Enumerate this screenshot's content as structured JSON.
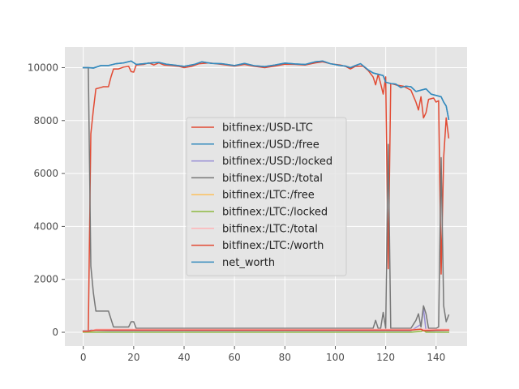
{
  "chart_data": {
    "type": "line",
    "title": "",
    "xlabel": "",
    "ylabel": "",
    "xlim": [
      -7.3,
      152.3
    ],
    "ylim": [
      -520,
      10780
    ],
    "xticks": [
      0,
      20,
      40,
      60,
      80,
      100,
      120,
      140
    ],
    "yticks": [
      0,
      2000,
      4000,
      6000,
      8000,
      10000
    ],
    "grid": true,
    "legend_position": "center",
    "series": [
      {
        "name": "bitfinex:/USD-LTC",
        "color": "#E24A33",
        "points": [
          [
            0,
            50
          ],
          [
            1,
            50
          ],
          [
            2,
            50
          ],
          [
            3,
            7500
          ],
          [
            4,
            8400
          ],
          [
            5,
            9200
          ],
          [
            7,
            9250
          ],
          [
            8,
            9280
          ],
          [
            10,
            9280
          ],
          [
            11,
            9650
          ],
          [
            12,
            9950
          ],
          [
            14,
            9950
          ],
          [
            16,
            10020
          ],
          [
            18,
            10050
          ],
          [
            19,
            9850
          ],
          [
            20,
            9830
          ],
          [
            21,
            10100
          ],
          [
            24,
            10120
          ],
          [
            26,
            10180
          ],
          [
            28,
            10100
          ],
          [
            30,
            10180
          ],
          [
            32,
            10100
          ],
          [
            35,
            10080
          ],
          [
            38,
            10050
          ],
          [
            40,
            10000
          ],
          [
            43,
            10050
          ],
          [
            46,
            10150
          ],
          [
            50,
            10180
          ],
          [
            55,
            10120
          ],
          [
            60,
            10060
          ],
          [
            64,
            10120
          ],
          [
            68,
            10050
          ],
          [
            72,
            10000
          ],
          [
            76,
            10060
          ],
          [
            80,
            10130
          ],
          [
            84,
            10120
          ],
          [
            88,
            10100
          ],
          [
            92,
            10180
          ],
          [
            95,
            10220
          ],
          [
            98,
            10150
          ],
          [
            102,
            10100
          ],
          [
            104,
            10050
          ],
          [
            106,
            9950
          ],
          [
            108,
            10050
          ],
          [
            111,
            10060
          ],
          [
            113,
            9900
          ],
          [
            115,
            9650
          ],
          [
            116,
            9350
          ],
          [
            117,
            9750
          ],
          [
            118,
            9400
          ],
          [
            119,
            9000
          ],
          [
            120,
            9650
          ],
          [
            121,
            2400
          ],
          [
            122,
            9400
          ],
          [
            124,
            9350
          ],
          [
            127,
            9300
          ],
          [
            130,
            9150
          ],
          [
            132,
            8700
          ],
          [
            133,
            8400
          ],
          [
            134,
            8900
          ],
          [
            135,
            8100
          ],
          [
            136,
            8300
          ],
          [
            137,
            8800
          ],
          [
            139,
            8850
          ],
          [
            140,
            8700
          ],
          [
            141,
            8750
          ],
          [
            142,
            2200
          ],
          [
            143,
            6600
          ],
          [
            144,
            8100
          ],
          [
            145,
            7350
          ]
        ]
      },
      {
        "name": "bitfinex:/USD:/free",
        "color": "#348ABD",
        "points": [
          [
            0,
            10000
          ],
          [
            2,
            10000
          ],
          [
            4,
            9980
          ],
          [
            7,
            10080
          ],
          [
            10,
            10080
          ],
          [
            13,
            10150
          ],
          [
            16,
            10180
          ],
          [
            19,
            10250
          ],
          [
            21,
            10120
          ],
          [
            24,
            10150
          ],
          [
            27,
            10180
          ],
          [
            30,
            10200
          ],
          [
            33,
            10130
          ],
          [
            36,
            10100
          ],
          [
            40,
            10050
          ],
          [
            44,
            10120
          ],
          [
            47,
            10220
          ],
          [
            51,
            10160
          ],
          [
            55,
            10150
          ],
          [
            60,
            10080
          ],
          [
            64,
            10160
          ],
          [
            68,
            10070
          ],
          [
            72,
            10040
          ],
          [
            76,
            10100
          ],
          [
            80,
            10170
          ],
          [
            84,
            10140
          ],
          [
            88,
            10120
          ],
          [
            92,
            10220
          ],
          [
            95,
            10250
          ],
          [
            98,
            10150
          ],
          [
            102,
            10080
          ],
          [
            104,
            10060
          ],
          [
            106,
            10000
          ],
          [
            108,
            10080
          ],
          [
            110,
            10150
          ],
          [
            113,
            9920
          ],
          [
            115,
            9800
          ],
          [
            117,
            9750
          ],
          [
            119,
            9700
          ],
          [
            120,
            9450
          ],
          [
            122,
            9400
          ],
          [
            124,
            9380
          ],
          [
            126,
            9250
          ],
          [
            128,
            9300
          ],
          [
            130,
            9280
          ],
          [
            132,
            9100
          ],
          [
            134,
            9150
          ],
          [
            136,
            9200
          ],
          [
            138,
            9000
          ],
          [
            140,
            8950
          ],
          [
            142,
            8900
          ],
          [
            143,
            8700
          ],
          [
            144,
            8550
          ],
          [
            145,
            8050
          ]
        ]
      },
      {
        "name": "bitfinex:/USD:/locked",
        "color": "#988ED5",
        "points": [
          [
            0,
            50
          ],
          [
            2,
            50
          ],
          [
            3,
            80
          ],
          [
            10,
            60
          ],
          [
            20,
            60
          ],
          [
            40,
            60
          ],
          [
            60,
            60
          ],
          [
            80,
            60
          ],
          [
            100,
            60
          ],
          [
            120,
            60
          ],
          [
            130,
            60
          ],
          [
            134,
            300
          ],
          [
            135,
            900
          ],
          [
            136,
            50
          ],
          [
            140,
            60
          ],
          [
            145,
            80
          ]
        ]
      },
      {
        "name": "bitfinex:/USD:/total",
        "color": "#777777",
        "points": [
          [
            0,
            10000
          ],
          [
            1,
            10000
          ],
          [
            2,
            10000
          ],
          [
            3,
            2500
          ],
          [
            4,
            1500
          ],
          [
            5,
            800
          ],
          [
            10,
            800
          ],
          [
            11,
            500
          ],
          [
            12,
            200
          ],
          [
            18,
            200
          ],
          [
            19,
            400
          ],
          [
            20,
            400
          ],
          [
            21,
            150
          ],
          [
            30,
            150
          ],
          [
            50,
            150
          ],
          [
            70,
            150
          ],
          [
            90,
            150
          ],
          [
            110,
            150
          ],
          [
            115,
            150
          ],
          [
            116,
            450
          ],
          [
            117,
            150
          ],
          [
            118,
            150
          ],
          [
            119,
            750
          ],
          [
            120,
            150
          ],
          [
            121,
            7100
          ],
          [
            122,
            150
          ],
          [
            130,
            150
          ],
          [
            132,
            450
          ],
          [
            133,
            700
          ],
          [
            134,
            200
          ],
          [
            135,
            1000
          ],
          [
            136,
            700
          ],
          [
            137,
            150
          ],
          [
            140,
            150
          ],
          [
            141,
            200
          ],
          [
            142,
            6600
          ],
          [
            143,
            1000
          ],
          [
            144,
            400
          ],
          [
            145,
            650
          ]
        ]
      },
      {
        "name": "bitfinex:/LTC:/free",
        "color": "#FBC15E",
        "points": [
          [
            0,
            30
          ],
          [
            2,
            30
          ],
          [
            3,
            50
          ],
          [
            5,
            100
          ],
          [
            10,
            100
          ],
          [
            20,
            100
          ],
          [
            40,
            100
          ],
          [
            60,
            100
          ],
          [
            80,
            100
          ],
          [
            100,
            100
          ],
          [
            120,
            100
          ],
          [
            130,
            100
          ],
          [
            145,
            100
          ]
        ]
      },
      {
        "name": "bitfinex:/LTC:/locked",
        "color": "#8EBA42",
        "points": [
          [
            0,
            5
          ],
          [
            20,
            5
          ],
          [
            40,
            5
          ],
          [
            60,
            5
          ],
          [
            80,
            5
          ],
          [
            100,
            5
          ],
          [
            120,
            5
          ],
          [
            130,
            5
          ],
          [
            134,
            30
          ],
          [
            135,
            80
          ],
          [
            136,
            5
          ],
          [
            145,
            5
          ]
        ]
      },
      {
        "name": "bitfinex:/LTC:/total",
        "color": "#FFB5B8",
        "points": [
          [
            0,
            30
          ],
          [
            2,
            30
          ],
          [
            3,
            60
          ],
          [
            5,
            110
          ],
          [
            10,
            110
          ],
          [
            20,
            110
          ],
          [
            40,
            110
          ],
          [
            60,
            110
          ],
          [
            80,
            110
          ],
          [
            100,
            110
          ],
          [
            120,
            110
          ],
          [
            130,
            110
          ],
          [
            145,
            110
          ]
        ]
      },
      {
        "name": "bitfinex:/LTC:/worth",
        "color": "#E24A33",
        "points": [
          [
            0,
            40
          ],
          [
            2,
            40
          ],
          [
            3,
            60
          ],
          [
            5,
            80
          ],
          [
            20,
            80
          ],
          [
            40,
            80
          ],
          [
            60,
            80
          ],
          [
            80,
            80
          ],
          [
            100,
            80
          ],
          [
            120,
            80
          ],
          [
            130,
            80
          ],
          [
            134,
            120
          ],
          [
            135,
            60
          ],
          [
            140,
            80
          ],
          [
            145,
            80
          ]
        ]
      },
      {
        "name": "net_worth",
        "color": "#348ABD",
        "points": [
          [
            0,
            10000
          ],
          [
            2,
            10000
          ],
          [
            4,
            9990
          ],
          [
            7,
            10080
          ],
          [
            10,
            10080
          ],
          [
            13,
            10150
          ],
          [
            16,
            10180
          ],
          [
            19,
            10250
          ],
          [
            21,
            10120
          ],
          [
            24,
            10150
          ],
          [
            27,
            10180
          ],
          [
            30,
            10200
          ],
          [
            33,
            10130
          ],
          [
            36,
            10100
          ],
          [
            40,
            10050
          ],
          [
            44,
            10120
          ],
          [
            47,
            10220
          ],
          [
            51,
            10160
          ],
          [
            55,
            10150
          ],
          [
            60,
            10080
          ],
          [
            64,
            10160
          ],
          [
            68,
            10070
          ],
          [
            72,
            10040
          ],
          [
            76,
            10100
          ],
          [
            80,
            10170
          ],
          [
            84,
            10140
          ],
          [
            88,
            10120
          ],
          [
            92,
            10220
          ],
          [
            95,
            10250
          ],
          [
            98,
            10150
          ],
          [
            102,
            10080
          ],
          [
            104,
            10060
          ],
          [
            106,
            10000
          ],
          [
            108,
            10080
          ],
          [
            110,
            10150
          ],
          [
            113,
            9920
          ],
          [
            115,
            9800
          ],
          [
            117,
            9750
          ],
          [
            119,
            9700
          ],
          [
            120,
            9450
          ],
          [
            122,
            9400
          ],
          [
            124,
            9380
          ],
          [
            126,
            9250
          ],
          [
            128,
            9300
          ],
          [
            130,
            9280
          ],
          [
            132,
            9100
          ],
          [
            134,
            9150
          ],
          [
            136,
            9200
          ],
          [
            138,
            9000
          ],
          [
            140,
            8950
          ],
          [
            142,
            8900
          ],
          [
            143,
            8700
          ],
          [
            144,
            8550
          ],
          [
            145,
            8050
          ]
        ]
      }
    ]
  }
}
